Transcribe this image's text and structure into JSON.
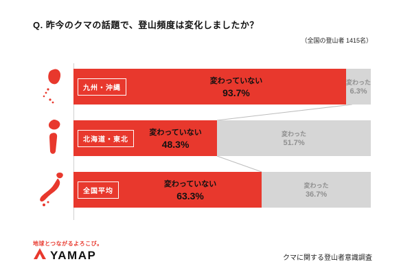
{
  "title": "Q. 昨今のクマの話題で、登山頻度は変化しましたか？",
  "sample_note": "（全国の登山者 1415名）",
  "chart_data": {
    "type": "bar",
    "orientation": "horizontal",
    "stacked": true,
    "unit": "%",
    "xlim": [
      0,
      100
    ],
    "categories": [
      "九州・沖縄",
      "北海道・東北",
      "全国平均"
    ],
    "series": [
      {
        "name": "変わっていない",
        "color": "#e8382d",
        "values": [
          93.7,
          48.3,
          63.3
        ]
      },
      {
        "name": "変わった",
        "color": "#d6d6d6",
        "values": [
          6.3,
          51.7,
          36.7
        ]
      }
    ]
  },
  "rows": [
    {
      "region": "九州・沖縄",
      "unchanged_label": "変わっていない",
      "unchanged_value": "93.7%",
      "changed_label": "変わった",
      "changed_value": "6.3%"
    },
    {
      "region": "北海道・東北",
      "unchanged_label": "変わっていない",
      "unchanged_value": "48.3%",
      "changed_label": "変わった",
      "changed_value": "51.7%"
    },
    {
      "region": "全国平均",
      "unchanged_label": "変わっていない",
      "unchanged_value": "63.3%",
      "changed_label": "変わった",
      "changed_value": "36.7%"
    }
  ],
  "footer": {
    "tagline": "地球とつながるよろこび。",
    "brand": "YAMAP",
    "survey_title": "クマに関する登山者意識調査"
  },
  "colors": {
    "primary_red": "#e8382d",
    "bar_gray": "#d6d6d6",
    "gray_text": "#8f8f8f",
    "connector": "#bcbcbc"
  }
}
